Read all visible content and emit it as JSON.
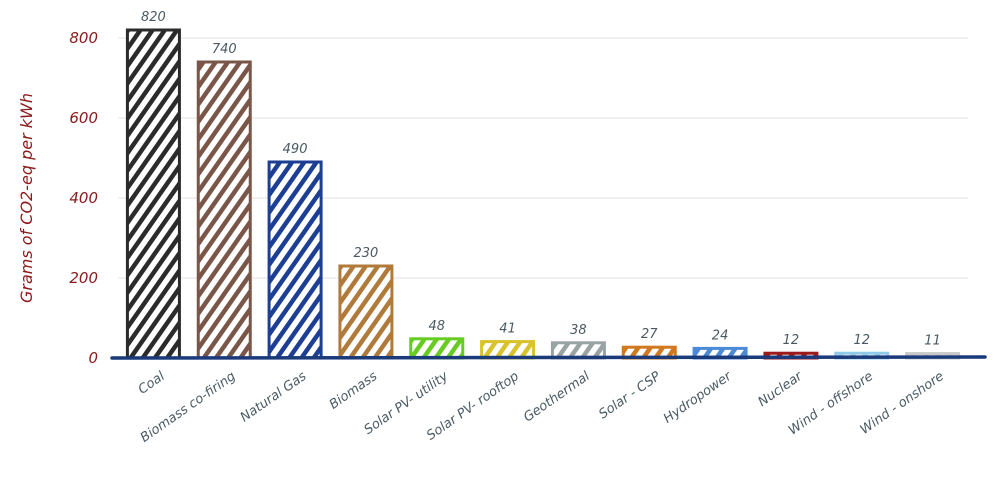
{
  "chart_data": {
    "type": "bar",
    "title": "",
    "xlabel": "",
    "ylabel": "Grams of CO2-eq per kWh",
    "ylim": [
      0,
      800
    ],
    "yticks": [
      0,
      200,
      400,
      600,
      800
    ],
    "grid": true,
    "categories": [
      "Coal",
      "Biomass co-firing",
      "Natural Gas",
      "Biomass",
      "Solar PV- utility",
      "Solar PV- rooftop",
      "Geothermal",
      "Solar - CSP",
      "Hydropower",
      "Nuclear",
      "Wind - offshore",
      "Wind - onshore"
    ],
    "values": [
      820,
      740,
      490,
      230,
      48,
      41,
      38,
      27,
      24,
      12,
      12,
      11
    ],
    "colors": [
      "#2b2b2b",
      "#7a5648",
      "#1c3f94",
      "#b07a3a",
      "#66cc22",
      "#d9c22a",
      "#9aa3a4",
      "#d2781f",
      "#4a8ad8",
      "#9c1a1a",
      "#8fcbe8",
      "#c8c8c8"
    ],
    "axis_color": "#1a3a7a"
  }
}
